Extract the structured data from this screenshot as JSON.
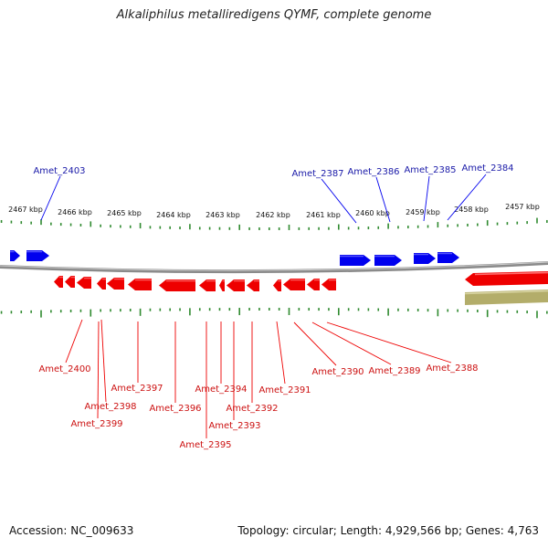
{
  "title": "Alkaliphilus metalliredigens QYMF, complete genome",
  "accession": "Accession: NC_009633",
  "summary": "Topology: circular; Length: 4,929,566 bp; Genes: 4,763",
  "colors": {
    "forward_gene": "#0000ee",
    "reverse_gene": "#ee0000",
    "forward_label": "#1a1aa8",
    "reverse_label": "#cc1111",
    "tick": "#2f8a2f",
    "backbone": "#8a8a8a",
    "olive_feature": "#b3ad6a"
  },
  "scale_labels": [
    {
      "text": "2467 kbp",
      "kbp": 2467
    },
    {
      "text": "2466 kbp",
      "kbp": 2466
    },
    {
      "text": "2465 kbp",
      "kbp": 2465
    },
    {
      "text": "2464 kbp",
      "kbp": 2464
    },
    {
      "text": "2463 kbp",
      "kbp": 2463
    },
    {
      "text": "2462 kbp",
      "kbp": 2462
    },
    {
      "text": "2461 kbp",
      "kbp": 2461
    },
    {
      "text": "2460 kbp",
      "kbp": 2460
    },
    {
      "text": "2459 kbp",
      "kbp": 2459
    },
    {
      "text": "2458 kbp",
      "kbp": 2458
    },
    {
      "text": "2457 kbp",
      "kbp": 2457
    }
  ],
  "forward_labels": [
    "Amet_2403",
    "Amet_2387",
    "Amet_2386",
    "Amet_2385",
    "Amet_2384"
  ],
  "reverse_labels": [
    "Amet_2400",
    "Amet_2398",
    "Amet_2399",
    "Amet_2397",
    "Amet_2396",
    "Amet_2394",
    "Amet_2395",
    "Amet_2393",
    "Amet_2392",
    "Amet_2391",
    "Amet_2390",
    "Amet_2389",
    "Amet_2388"
  ]
}
